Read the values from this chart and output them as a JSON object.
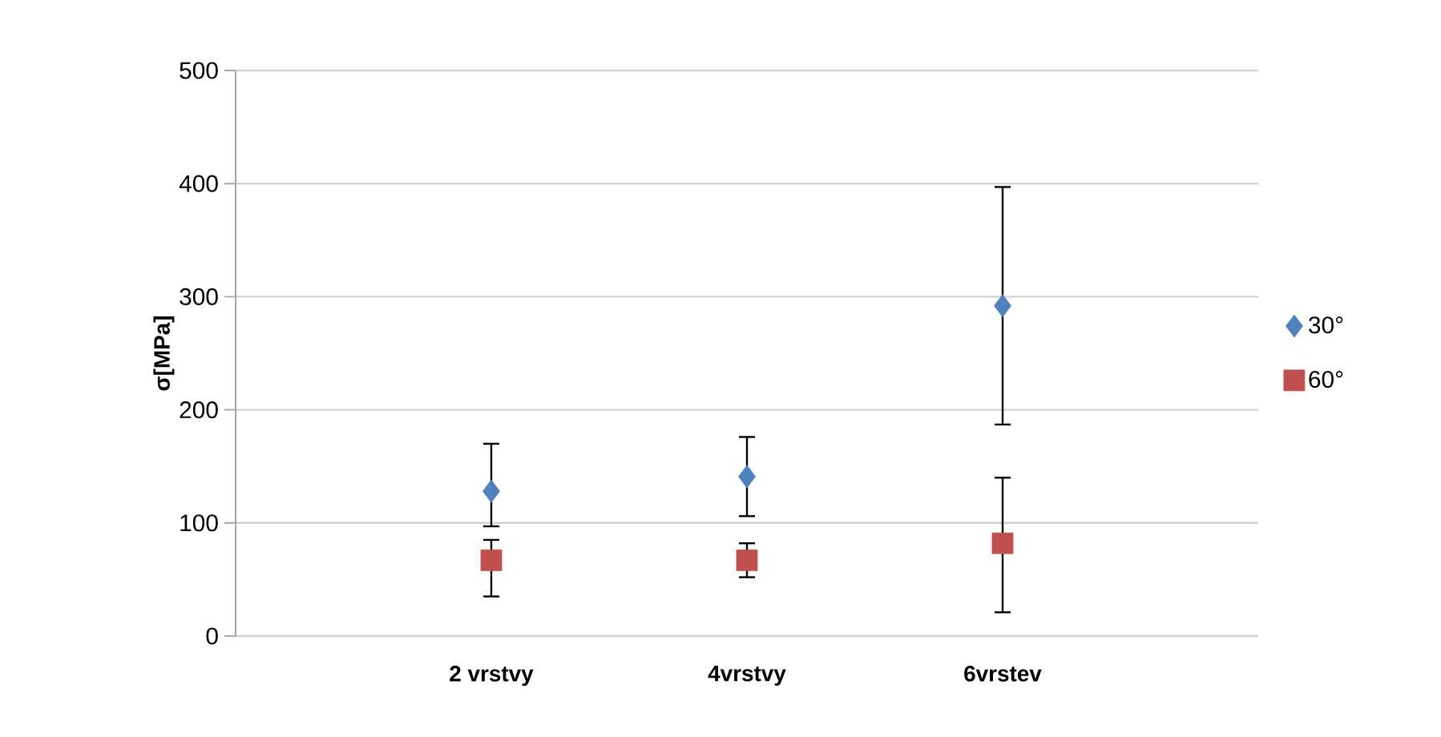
{
  "chart_data": {
    "type": "scatter",
    "ylabel": "σ[MPa]",
    "categories": [
      "2 vrstvy",
      "4vrstvy",
      "6vrstev"
    ],
    "series": [
      {
        "name": "30°",
        "color": "#4f81bd",
        "marker": "diamond",
        "values": [
          128,
          141,
          292
        ],
        "errors": [
          [
            97,
            170
          ],
          [
            106,
            176
          ],
          [
            187,
            397
          ]
        ]
      },
      {
        "name": "60°",
        "color": "#c0504d",
        "marker": "square",
        "values": [
          67,
          67,
          82
        ],
        "errors": [
          [
            35,
            85
          ],
          [
            52,
            82
          ],
          [
            21,
            140
          ]
        ]
      }
    ],
    "ylim": [
      0,
      500
    ],
    "yticks": [
      0,
      100,
      200,
      300,
      400,
      500
    ],
    "grid": "y",
    "legend": "right"
  }
}
